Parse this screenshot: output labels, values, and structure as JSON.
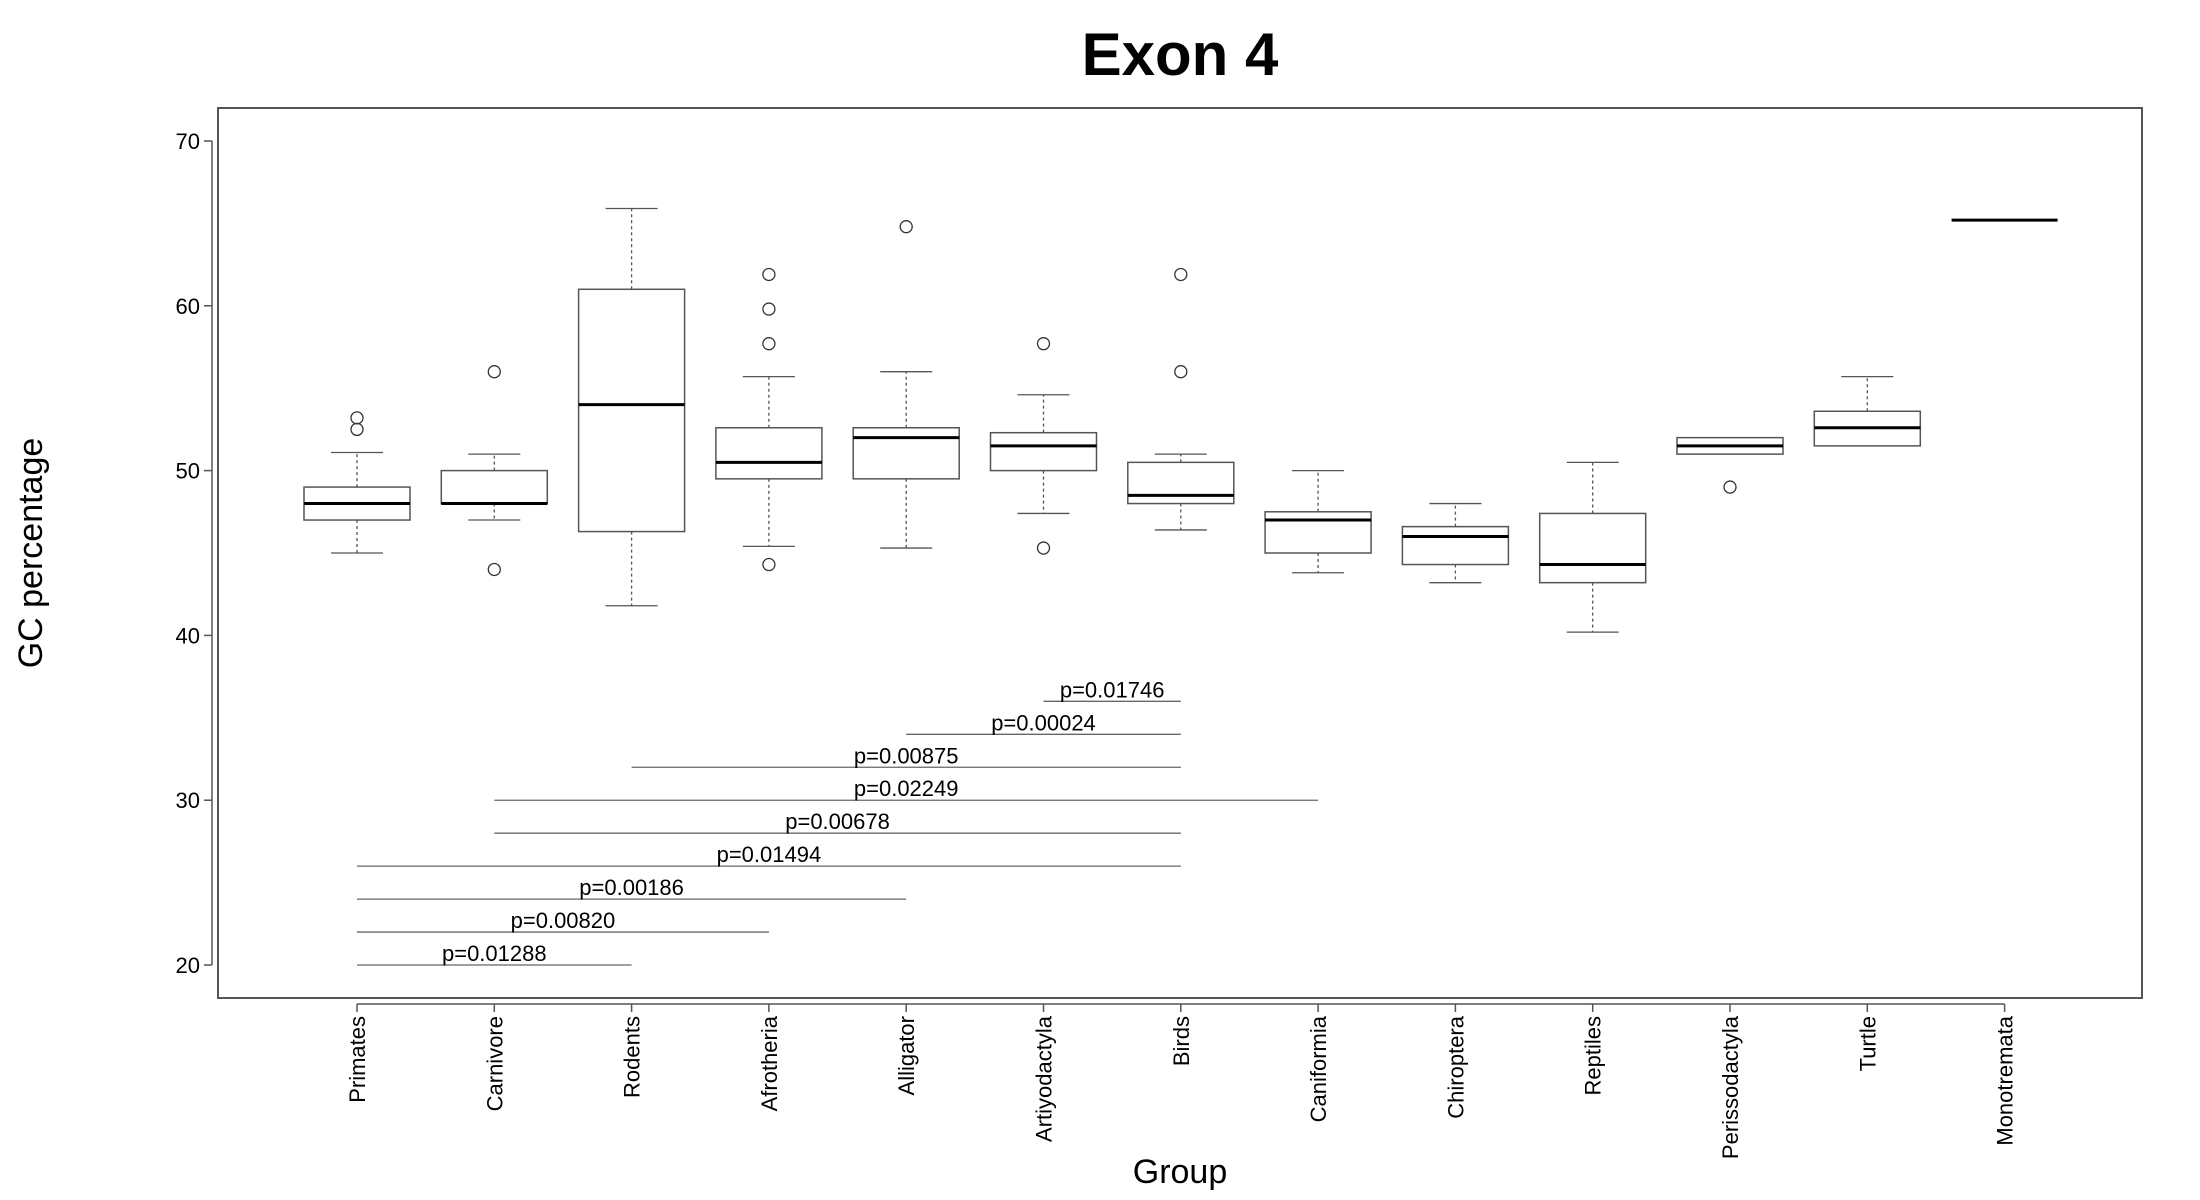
{
  "chart_data": {
    "type": "boxplot",
    "title": "Exon 4",
    "xlabel": "Group",
    "ylabel": "GC percentage",
    "ylim": [
      18,
      72
    ],
    "yticks": [
      20,
      30,
      40,
      50,
      60,
      70
    ],
    "grid": false,
    "categories": [
      "Primates",
      "Carnivore",
      "Rodents",
      "Afrotheria",
      "Alligator",
      "Artiyodactyla",
      "Birds",
      "Caniformia",
      "Chiroptera",
      "Reptiles",
      "Perissodactyla",
      "Turtle",
      "Monotremata"
    ],
    "boxes": [
      {
        "whisker_low": 45.0,
        "q1": 47.0,
        "median": 48.0,
        "q3": 49.0,
        "whisker_high": 51.1,
        "outliers": [
          52.5,
          53.2
        ]
      },
      {
        "whisker_low": 47.0,
        "q1": 48.0,
        "median": 48.0,
        "q3": 50.0,
        "whisker_high": 51.0,
        "outliers": [
          44.0,
          56.0
        ]
      },
      {
        "whisker_low": 41.8,
        "q1": 46.3,
        "median": 54.0,
        "q3": 61.0,
        "whisker_high": 65.9,
        "outliers": []
      },
      {
        "whisker_low": 45.4,
        "q1": 49.5,
        "median": 50.5,
        "q3": 52.6,
        "whisker_high": 55.7,
        "outliers": [
          44.3,
          57.7,
          59.8,
          61.9
        ]
      },
      {
        "whisker_low": 45.3,
        "q1": 49.5,
        "median": 52.0,
        "q3": 52.6,
        "whisker_high": 56.0,
        "outliers": [
          64.8
        ]
      },
      {
        "whisker_low": 47.4,
        "q1": 50.0,
        "median": 51.5,
        "q3": 52.3,
        "whisker_high": 54.6,
        "outliers": [
          45.3,
          57.7
        ]
      },
      {
        "whisker_low": 46.4,
        "q1": 48.0,
        "median": 48.5,
        "q3": 50.5,
        "whisker_high": 51.0,
        "outliers": [
          56.0,
          61.9
        ]
      },
      {
        "whisker_low": 43.8,
        "q1": 45.0,
        "median": 47.0,
        "q3": 47.5,
        "whisker_high": 50.0,
        "outliers": []
      },
      {
        "whisker_low": 43.2,
        "q1": 44.3,
        "median": 46.0,
        "q3": 46.6,
        "whisker_high": 48.0,
        "outliers": []
      },
      {
        "whisker_low": 40.2,
        "q1": 43.2,
        "median": 44.3,
        "q3": 47.4,
        "whisker_high": 50.5,
        "outliers": []
      },
      {
        "whisker_low": 51.0,
        "q1": 51.0,
        "median": 51.5,
        "q3": 52.0,
        "whisker_high": 52.0,
        "outliers": [
          49.0
        ]
      },
      {
        "whisker_low": 51.5,
        "q1": 51.5,
        "median": 52.6,
        "q3": 53.6,
        "whisker_high": 55.7,
        "outliers": []
      },
      {
        "whisker_low": 65.2,
        "q1": 65.2,
        "median": 65.2,
        "q3": 65.2,
        "whisker_high": 65.2,
        "outliers": []
      }
    ],
    "comparisons": [
      {
        "from": "Artiyodactyla",
        "to": "Birds",
        "y": 36,
        "label": "p=0.01746"
      },
      {
        "from": "Alligator",
        "to": "Birds",
        "y": 34,
        "label": "p=0.00024"
      },
      {
        "from": "Rodents",
        "to": "Birds",
        "y": 32,
        "label": "p=0.00875"
      },
      {
        "from": "Carnivore",
        "to": "Caniformia",
        "y": 30,
        "label": "p=0.02249"
      },
      {
        "from": "Carnivore",
        "to": "Birds",
        "y": 28,
        "label": "p=0.00678"
      },
      {
        "from": "Primates",
        "to": "Birds",
        "y": 26,
        "label": "p=0.01494"
      },
      {
        "from": "Primates",
        "to": "Alligator",
        "y": 24,
        "label": "p=0.00186"
      },
      {
        "from": "Primates",
        "to": "Afrotheria",
        "y": 22,
        "label": "p=0.00820"
      },
      {
        "from": "Primates",
        "to": "Rodents",
        "y": 20,
        "label": "p=0.01288"
      }
    ]
  }
}
